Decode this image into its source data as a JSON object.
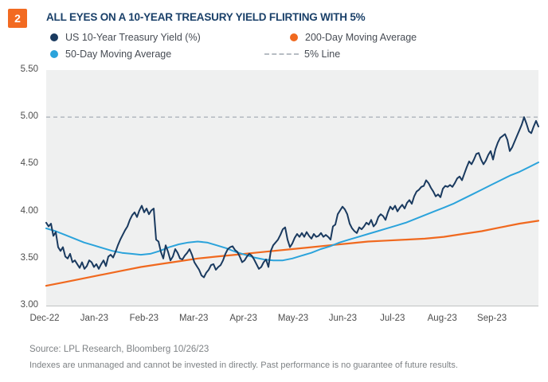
{
  "card": {
    "badge": "2",
    "title": "ALL EYES ON A 10-YEAR TREASURY YIELD FLIRTING WITH 5%",
    "source": "Source: LPL Research, Bloomberg 10/26/23",
    "disclaimer": "Indexes are unmanaged and cannot be invested in directly. Past performance is no guarantee of future results."
  },
  "colors": {
    "badge_bg": "#F26A21",
    "title_text": "#1A4069",
    "treasury_line": "#1A3A5F",
    "ma50_line": "#2BA3DB",
    "ma200_line": "#F0691F",
    "dashed_line": "#B7BDC3",
    "plot_bg": "#EFF0F0",
    "axis_line": "#BFC2C2"
  },
  "legend": {
    "items": [
      {
        "id": "us10",
        "label": "US 10-Year Treasury Yield (%)",
        "marker": "dot",
        "color": "#1A3A5F"
      },
      {
        "id": "ma200",
        "label": "200-Day Moving Average",
        "marker": "dot",
        "color": "#F0691F"
      },
      {
        "id": "ma50",
        "label": "50-Day Moving Average",
        "marker": "dot",
        "color": "#2BA3DB"
      },
      {
        "id": "line5",
        "label": "5% Line",
        "marker": "dash",
        "color": "#B7BDC3"
      }
    ]
  },
  "chart_data": {
    "type": "line",
    "title": "ALL EYES ON A 10-YEAR TREASURY YIELD FLIRTING WITH 5%",
    "x_unit": "months since Dec-22",
    "x_ticks": [
      "Dec-22",
      "Jan-23",
      "Feb-23",
      "Mar-23",
      "Apr-23",
      "May-23",
      "Jun-23",
      "Jul-23",
      "Aug-23",
      "Sep-23"
    ],
    "y_tick_labels": [
      "5.50",
      "5.00",
      "4.50",
      "4.00",
      "3.50",
      "3.00"
    ],
    "y_tick_values": [
      5.5,
      5.0,
      4.5,
      4.0,
      3.5,
      3.0
    ],
    "ylim": [
      3.0,
      5.5
    ],
    "xlim": [
      0.032,
      9.936
    ],
    "grid": false,
    "legend_position": "top",
    "reference_line": {
      "label": "5% Line",
      "value": 5.0,
      "style": "dashed"
    },
    "series": [
      {
        "name": "200-Day Moving Average",
        "color": "#F0691F",
        "width": 2.2,
        "x0": 0.032,
        "dx": 0.380923,
        "values": [
          3.21,
          3.25,
          3.29,
          3.33,
          3.37,
          3.41,
          3.44,
          3.47,
          3.5,
          3.52,
          3.54,
          3.56,
          3.58,
          3.6,
          3.62,
          3.64,
          3.66,
          3.68,
          3.69,
          3.7,
          3.71,
          3.73,
          3.76,
          3.79,
          3.83,
          3.87,
          3.9
        ]
      },
      {
        "name": "50-Day Moving Average",
        "color": "#2BA3DB",
        "width": 2,
        "x0": 0.032,
        "dx": 0.190462,
        "values": [
          3.82,
          3.79,
          3.75,
          3.71,
          3.67,
          3.64,
          3.61,
          3.58,
          3.56,
          3.55,
          3.54,
          3.55,
          3.58,
          3.62,
          3.65,
          3.67,
          3.68,
          3.67,
          3.64,
          3.61,
          3.57,
          3.54,
          3.51,
          3.49,
          3.48,
          3.48,
          3.5,
          3.53,
          3.56,
          3.6,
          3.63,
          3.67,
          3.7,
          3.73,
          3.76,
          3.79,
          3.82,
          3.85,
          3.88,
          3.92,
          3.96,
          4.0,
          4.04,
          4.08,
          4.13,
          4.18,
          4.23,
          4.28,
          4.33,
          4.38,
          4.42,
          4.47,
          4.52
        ]
      },
      {
        "name": "US 10-Year Treasury Yield (%)",
        "color": "#1A3A5F",
        "width": 2,
        "x0": 0.032,
        "dx": 0.048078,
        "values": [
          3.88,
          3.84,
          3.87,
          3.74,
          3.78,
          3.62,
          3.58,
          3.62,
          3.52,
          3.5,
          3.55,
          3.46,
          3.48,
          3.44,
          3.4,
          3.46,
          3.39,
          3.42,
          3.48,
          3.46,
          3.41,
          3.44,
          3.39,
          3.44,
          3.48,
          3.42,
          3.52,
          3.54,
          3.51,
          3.57,
          3.64,
          3.7,
          3.75,
          3.8,
          3.84,
          3.91,
          3.96,
          3.99,
          3.94,
          4.01,
          4.06,
          3.99,
          4.03,
          3.97,
          4.01,
          4.03,
          3.7,
          3.68,
          3.57,
          3.5,
          3.64,
          3.57,
          3.48,
          3.52,
          3.6,
          3.56,
          3.5,
          3.49,
          3.53,
          3.56,
          3.6,
          3.54,
          3.46,
          3.42,
          3.38,
          3.32,
          3.3,
          3.35,
          3.38,
          3.43,
          3.44,
          3.38,
          3.41,
          3.43,
          3.48,
          3.55,
          3.6,
          3.62,
          3.63,
          3.59,
          3.57,
          3.52,
          3.46,
          3.48,
          3.52,
          3.55,
          3.53,
          3.49,
          3.44,
          3.39,
          3.41,
          3.46,
          3.49,
          3.41,
          3.58,
          3.64,
          3.67,
          3.7,
          3.75,
          3.81,
          3.83,
          3.7,
          3.62,
          3.66,
          3.72,
          3.76,
          3.73,
          3.77,
          3.73,
          3.78,
          3.74,
          3.71,
          3.76,
          3.73,
          3.74,
          3.77,
          3.73,
          3.75,
          3.73,
          3.7,
          3.84,
          3.86,
          3.97,
          4.01,
          4.05,
          4.02,
          3.97,
          3.87,
          3.82,
          3.79,
          3.77,
          3.83,
          3.81,
          3.84,
          3.88,
          3.86,
          3.91,
          3.84,
          3.87,
          3.94,
          3.97,
          3.95,
          3.91,
          3.99,
          4.05,
          4.02,
          4.06,
          4.0,
          4.04,
          4.07,
          4.03,
          4.09,
          4.12,
          4.08,
          4.16,
          4.21,
          4.23,
          4.26,
          4.27,
          4.33,
          4.3,
          4.25,
          4.21,
          4.16,
          4.18,
          4.15,
          4.24,
          4.27,
          4.26,
          4.28,
          4.26,
          4.3,
          4.35,
          4.37,
          4.33,
          4.4,
          4.47,
          4.53,
          4.5,
          4.55,
          4.61,
          4.62,
          4.55,
          4.5,
          4.54,
          4.6,
          4.64,
          4.55,
          4.66,
          4.73,
          4.78,
          4.8,
          4.82,
          4.76,
          4.64,
          4.68,
          4.74,
          4.8,
          4.86,
          4.92,
          5.0,
          4.93,
          4.85,
          4.83,
          4.9,
          4.96,
          4.9
        ]
      }
    ]
  }
}
